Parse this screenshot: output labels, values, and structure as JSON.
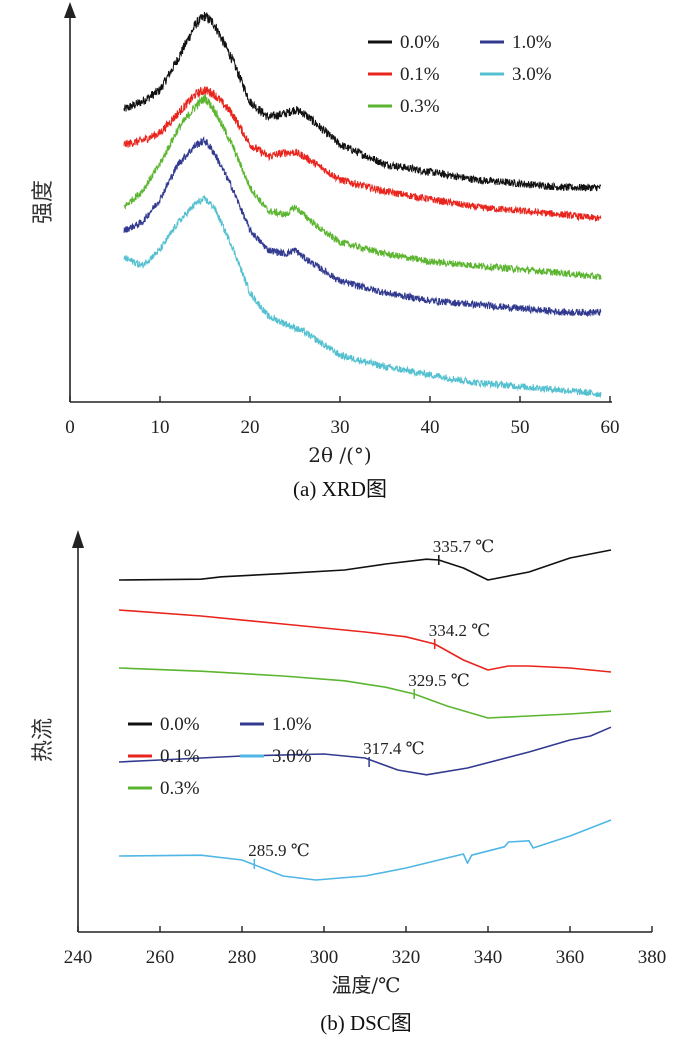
{
  "chart_data": [
    {
      "type": "line",
      "caption": "(a) XRD图",
      "xlabel": "2θ /(°)",
      "ylabel": "强度",
      "xlim": [
        0,
        60
      ],
      "xticks": [
        0,
        10,
        20,
        30,
        40,
        50,
        60
      ],
      "legend_position": "top-right",
      "legend_order": [
        "0.0%",
        "1.0%",
        "0.1%",
        "3.0%",
        "0.3%"
      ],
      "noisy": true,
      "x": [
        6,
        8,
        10,
        12,
        14,
        15,
        16,
        18,
        20,
        22,
        24,
        25,
        26,
        28,
        30,
        35,
        40,
        45,
        50,
        55,
        59
      ],
      "series": [
        {
          "name": "0.0%",
          "color": "#111111",
          "values": [
            0.75,
            0.77,
            0.8,
            0.88,
            0.97,
            0.99,
            0.97,
            0.88,
            0.77,
            0.73,
            0.74,
            0.75,
            0.74,
            0.7,
            0.66,
            0.61,
            0.59,
            0.57,
            0.56,
            0.55,
            0.55
          ]
        },
        {
          "name": "0.1%",
          "color": "#e8241c",
          "values": [
            0.66,
            0.67,
            0.69,
            0.74,
            0.79,
            0.8,
            0.79,
            0.74,
            0.66,
            0.63,
            0.64,
            0.64,
            0.63,
            0.6,
            0.57,
            0.54,
            0.52,
            0.5,
            0.49,
            0.48,
            0.47
          ]
        },
        {
          "name": "0.3%",
          "color": "#5cb530",
          "values": [
            0.5,
            0.54,
            0.61,
            0.7,
            0.76,
            0.78,
            0.75,
            0.66,
            0.55,
            0.49,
            0.48,
            0.5,
            0.48,
            0.44,
            0.41,
            0.38,
            0.36,
            0.35,
            0.34,
            0.33,
            0.32
          ]
        },
        {
          "name": "1.0%",
          "color": "#323a8f",
          "values": [
            0.44,
            0.46,
            0.52,
            0.61,
            0.66,
            0.67,
            0.64,
            0.55,
            0.44,
            0.39,
            0.38,
            0.39,
            0.37,
            0.34,
            0.31,
            0.28,
            0.26,
            0.25,
            0.24,
            0.23,
            0.23
          ]
        },
        {
          "name": "3.0%",
          "color": "#54c0d0",
          "values": [
            0.37,
            0.35,
            0.39,
            0.46,
            0.51,
            0.52,
            0.5,
            0.4,
            0.28,
            0.22,
            0.2,
            0.19,
            0.18,
            0.15,
            0.12,
            0.09,
            0.07,
            0.05,
            0.04,
            0.03,
            0.02
          ]
        }
      ]
    },
    {
      "type": "line",
      "caption": "(b) DSC图",
      "xlabel": "温度/℃",
      "ylabel": "热流",
      "xlim": [
        240,
        380
      ],
      "xticks": [
        240,
        260,
        280,
        300,
        320,
        340,
        360,
        380
      ],
      "legend_position": "center-left",
      "legend_order": [
        "0.0%",
        "1.0%",
        "0.1%",
        "3.0%",
        "0.3%"
      ],
      "series": [
        {
          "name": "0.0%",
          "color": "#111111",
          "x": [
            250,
            270,
            275,
            290,
            305,
            315,
            325,
            328,
            334,
            340,
            350,
            360,
            370
          ],
          "values": [
            0.88,
            0.882,
            0.888,
            0.896,
            0.905,
            0.92,
            0.932,
            0.93,
            0.91,
            0.88,
            0.9,
            0.935,
            0.955
          ]
        },
        {
          "name": "0.1%",
          "color": "#e8241c",
          "x": [
            250,
            270,
            290,
            310,
            320,
            327,
            334,
            340,
            345,
            350,
            360,
            370
          ],
          "values": [
            0.805,
            0.79,
            0.77,
            0.75,
            0.738,
            0.72,
            0.68,
            0.655,
            0.665,
            0.665,
            0.66,
            0.65
          ]
        },
        {
          "name": "0.3%",
          "color": "#5cb530",
          "x": [
            250,
            270,
            290,
            305,
            315,
            322,
            330,
            340,
            350,
            360,
            370
          ],
          "values": [
            0.66,
            0.652,
            0.64,
            0.628,
            0.612,
            0.595,
            0.565,
            0.535,
            0.54,
            0.545,
            0.552
          ]
        },
        {
          "name": "1.0%",
          "color": "#323a8f",
          "x": [
            250,
            260,
            280,
            300,
            310,
            318,
            325,
            335,
            350,
            360,
            365,
            370
          ],
          "values": [
            0.425,
            0.43,
            0.44,
            0.445,
            0.435,
            0.405,
            0.393,
            0.41,
            0.45,
            0.48,
            0.49,
            0.512
          ]
        },
        {
          "name": "3.0%",
          "color": "#4fb6e6",
          "x": [
            250,
            270,
            280,
            285,
            290,
            298,
            310,
            320,
            330,
            334,
            335,
            336,
            344,
            345,
            350,
            351,
            360,
            370
          ],
          "values": [
            0.19,
            0.192,
            0.18,
            0.16,
            0.14,
            0.13,
            0.14,
            0.16,
            0.185,
            0.195,
            0.172,
            0.192,
            0.213,
            0.225,
            0.228,
            0.21,
            0.24,
            0.28
          ]
        }
      ],
      "annotations": [
        {
          "text": "335.7 ℃",
          "series": "0.0%",
          "x": 328,
          "y": 0.93
        },
        {
          "text": "334.2 ℃",
          "series": "0.1%",
          "x": 327,
          "y": 0.72
        },
        {
          "text": "329.5 ℃",
          "series": "0.3%",
          "x": 322,
          "y": 0.595
        },
        {
          "text": "317.4 ℃",
          "series": "1.0%",
          "x": 311,
          "y": 0.425
        },
        {
          "text": "285.9 ℃",
          "series": "3.0%",
          "x": 283,
          "y": 0.17
        }
      ]
    }
  ]
}
